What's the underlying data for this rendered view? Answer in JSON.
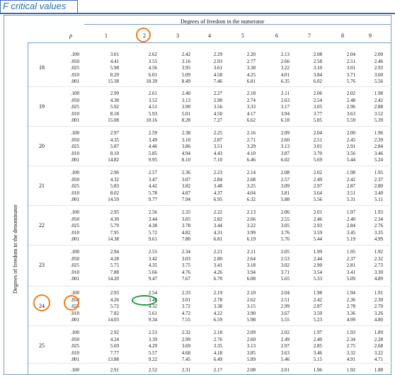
{
  "title": "F critical values",
  "numerator_title": "Degrees of freedom in the numerator",
  "denominator_title": "Degrees of freedom in the denominator",
  "p_label": "p",
  "columns": [
    "1",
    "2",
    "3",
    "4",
    "5",
    "6",
    "7",
    "8",
    "9"
  ],
  "p_values": [
    ".100",
    ".050",
    ".025",
    ".010",
    ".001"
  ],
  "blocks": [
    {
      "df": "18",
      "rows": [
        [
          "3.01",
          "2.62",
          "2.42",
          "2.29",
          "2.20",
          "2.13",
          "2.08",
          "2.04",
          "2.00"
        ],
        [
          "4.41",
          "3.55",
          "3.16",
          "2.93",
          "2.77",
          "2.66",
          "2.58",
          "2.51",
          "2.46"
        ],
        [
          "5.98",
          "4.56",
          "3.95",
          "3.61",
          "3.38",
          "3.22",
          "3.10",
          "3.01",
          "2.93"
        ],
        [
          "8.29",
          "6.01",
          "5.09",
          "4.58",
          "4.25",
          "4.01",
          "3.84",
          "3.71",
          "3.60"
        ],
        [
          "15.38",
          "10.39",
          "8.49",
          "7.46",
          "6.81",
          "6.35",
          "6.02",
          "5.76",
          "5.56"
        ]
      ]
    },
    {
      "df": "19",
      "rows": [
        [
          "2.99",
          "2.61",
          "2.40",
          "2.27",
          "2.18",
          "2.11",
          "2.06",
          "2.02",
          "1.98"
        ],
        [
          "4.38",
          "3.52",
          "3.13",
          "2.90",
          "2.74",
          "2.63",
          "2.54",
          "2.48",
          "2.42"
        ],
        [
          "5.92",
          "4.51",
          "3.90",
          "3.56",
          "3.33",
          "3.17",
          "3.05",
          "2.96",
          "2.88"
        ],
        [
          "8.18",
          "5.93",
          "5.01",
          "4.50",
          "4.17",
          "3.94",
          "3.77",
          "3.63",
          "3.52"
        ],
        [
          "15.08",
          "10.16",
          "8.28",
          "7.27",
          "6.62",
          "6.18",
          "5.85",
          "5.59",
          "5.39"
        ]
      ]
    },
    {
      "df": "20",
      "rows": [
        [
          "2.97",
          "2.59",
          "2.38",
          "2.25",
          "2.16",
          "2.09",
          "2.04",
          "2.00",
          "1.96"
        ],
        [
          "4.35",
          "3.49",
          "3.10",
          "2.87",
          "2.71",
          "2.60",
          "2.51",
          "2.45",
          "2.39"
        ],
        [
          "5.87",
          "4.46",
          "3.86",
          "3.51",
          "3.29",
          "3.13",
          "3.01",
          "2.91",
          "2.84"
        ],
        [
          "8.10",
          "5.85",
          "4.94",
          "4.43",
          "4.10",
          "3.87",
          "3.70",
          "3.56",
          "3.46"
        ],
        [
          "14.82",
          "9.95",
          "8.10",
          "7.10",
          "6.46",
          "6.02",
          "5.69",
          "5.44",
          "5.24"
        ]
      ]
    },
    {
      "df": "21",
      "rows": [
        [
          "2.96",
          "2.57",
          "2.36",
          "2.23",
          "2.14",
          "2.08",
          "2.02",
          "1.98",
          "1.95"
        ],
        [
          "4.32",
          "3.47",
          "3.07",
          "2.84",
          "2.68",
          "2.57",
          "2.49",
          "2.42",
          "2.37"
        ],
        [
          "5.83",
          "4.42",
          "3.82",
          "3.48",
          "3.25",
          "3.09",
          "2.97",
          "2.87",
          "2.80"
        ],
        [
          "8.02",
          "5.78",
          "4.87",
          "4.37",
          "4.04",
          "3.81",
          "3.64",
          "3.51",
          "3.40"
        ],
        [
          "14.59",
          "9.77",
          "7.94",
          "6.95",
          "6.32",
          "5.88",
          "5.56",
          "5.31",
          "5.11"
        ]
      ]
    },
    {
      "df": "22",
      "rows": [
        [
          "2.95",
          "2.56",
          "2.35",
          "2.22",
          "2.13",
          "2.06",
          "2.01",
          "1.97",
          "1.93"
        ],
        [
          "4.30",
          "3.44",
          "3.05",
          "2.82",
          "2.66",
          "2.55",
          "2.46",
          "2.40",
          "2.34"
        ],
        [
          "5.79",
          "4.38",
          "3.78",
          "3.44",
          "3.22",
          "3.05",
          "2.93",
          "2.84",
          "2.76"
        ],
        [
          "7.95",
          "5.72",
          "4.82",
          "4.31",
          "3.99",
          "3.76",
          "3.59",
          "3.45",
          "3.35"
        ],
        [
          "14.38",
          "9.61",
          "7.80",
          "6.81",
          "6.19",
          "5.76",
          "5.44",
          "5.19",
          "4.99"
        ]
      ]
    },
    {
      "df": "23",
      "rows": [
        [
          "2.94",
          "2.55",
          "2.34",
          "2.21",
          "2.11",
          "2.05",
          "1.99",
          "1.95",
          "1.92"
        ],
        [
          "4.28",
          "3.42",
          "3.03",
          "2.80",
          "2.64",
          "2.53",
          "2.44",
          "2.37",
          "2.32"
        ],
        [
          "5.75",
          "4.35",
          "3.75",
          "3.41",
          "3.18",
          "3.02",
          "2.90",
          "2.81",
          "2.73"
        ],
        [
          "7.88",
          "5.66",
          "4.76",
          "4.26",
          "3.94",
          "3.71",
          "3.54",
          "3.41",
          "3.30"
        ],
        [
          "14.20",
          "9.47",
          "7.67",
          "6.70",
          "6.08",
          "5.65",
          "5.33",
          "5.09",
          "4.89"
        ]
      ]
    },
    {
      "df": "24",
      "rows": [
        [
          "2.93",
          "2.54",
          "2.33",
          "2.19",
          "2.10",
          "2.04",
          "1.98",
          "1.94",
          "1.91"
        ],
        [
          "4.26",
          "3.40",
          "3.01",
          "2.78",
          "2.62",
          "2.51",
          "2.42",
          "2.36",
          "2.30"
        ],
        [
          "5.72",
          "4.32",
          "3.72",
          "3.38",
          "3.15",
          "2.99",
          "2.87",
          "2.78",
          "2.70"
        ],
        [
          "7.82",
          "5.61",
          "4.72",
          "4.22",
          "3.90",
          "3.67",
          "3.50",
          "3.36",
          "3.26"
        ],
        [
          "14.03",
          "9.34",
          "7.55",
          "6.59",
          "5.98",
          "5.55",
          "5.23",
          "4.99",
          "4.80"
        ]
      ]
    },
    {
      "df": "25",
      "rows": [
        [
          "2.92",
          "2.53",
          "2.32",
          "2.18",
          "2.09",
          "2.02",
          "1.97",
          "1.93",
          "1.89"
        ],
        [
          "4.24",
          "3.39",
          "2.99",
          "2.76",
          "2.60",
          "2.49",
          "2.40",
          "2.34",
          "2.28"
        ],
        [
          "5.69",
          "4.29",
          "3.69",
          "3.35",
          "3.13",
          "2.97",
          "2.85",
          "2.75",
          "2.68"
        ],
        [
          "7.77",
          "5.57",
          "4.68",
          "4.18",
          "3.85",
          "3.63",
          "3.46",
          "3.32",
          "3.22"
        ],
        [
          "13.88",
          "9.22",
          "7.45",
          "6.49",
          "5.89",
          "5.46",
          "5.15",
          "4.91",
          "4.71"
        ]
      ]
    },
    {
      "df": "",
      "rows": [
        [
          "2.91",
          "2.52",
          "2.31",
          "2.17",
          "2.08",
          "2.01",
          "1.96",
          "1.92",
          "1.88"
        ]
      ]
    }
  ],
  "highlights": {
    "orange_column": "2",
    "orange_row_df": "24",
    "orange_p": ".050",
    "green_value": "3.40"
  },
  "colors": {
    "header_blue": "#2a6db3",
    "border": "#7a9cc4",
    "orange": "#f07d1e",
    "green": "#1a9a3a"
  }
}
